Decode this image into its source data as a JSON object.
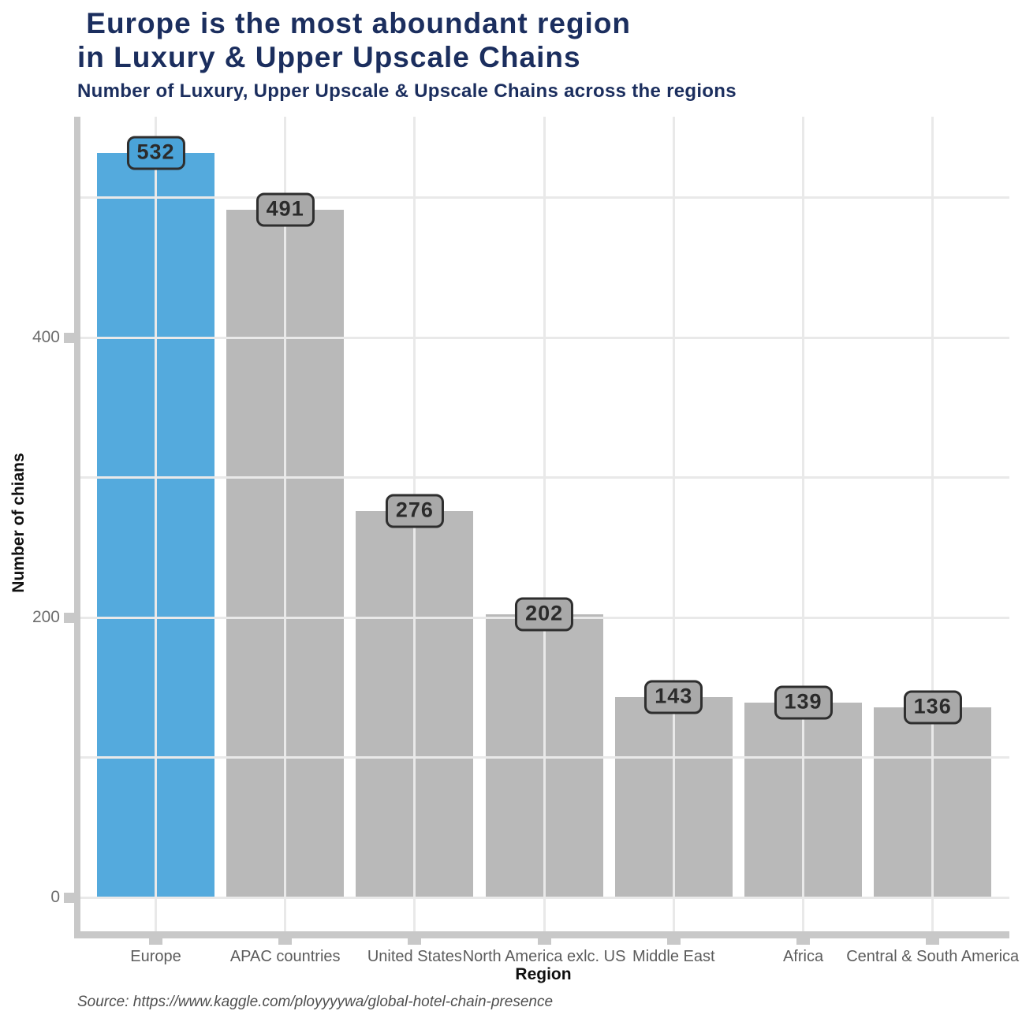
{
  "header": {
    "title": " Europe is the most aboundant region\nin Luxury & Upper Upscale Chains",
    "subtitle": "Number of Luxury, Upper Upscale & Upscale Chains across the regions"
  },
  "chart_data": {
    "type": "bar",
    "title": "Europe is the most aboundant region in Luxury & Upper Upscale Chains",
    "subtitle": "Number of Luxury, Upper Upscale & Upscale Chains across the regions",
    "categories": [
      "Europe",
      "APAC countries",
      "United States",
      "North America exlc. US",
      "Middle East",
      "Africa",
      "Central & South America"
    ],
    "values": [
      532,
      491,
      276,
      202,
      143,
      139,
      136
    ],
    "xlabel": "Region",
    "ylabel": "Number of chians",
    "yticks": [
      0,
      200,
      400
    ],
    "ylim": [
      0,
      557
    ],
    "grid": {
      "min": 0,
      "max": 500,
      "step": 100,
      "on": true
    },
    "legend": "none",
    "highlight_index": 0,
    "colors": {
      "highlight": "#54aadd",
      "bar": "#b9b9b9",
      "highlight_label": "#4aa3d8",
      "bar_label": "#a9a9a9",
      "label_border": "#2e2e2e",
      "title_navy": "#1b2e5e",
      "axis_gray": "#c8c8c8",
      "gridline": "#e9e9e9"
    }
  },
  "footer": {
    "source": "Source: https://www.kaggle.com/ployyyywa/global-hotel-chain-presence"
  }
}
